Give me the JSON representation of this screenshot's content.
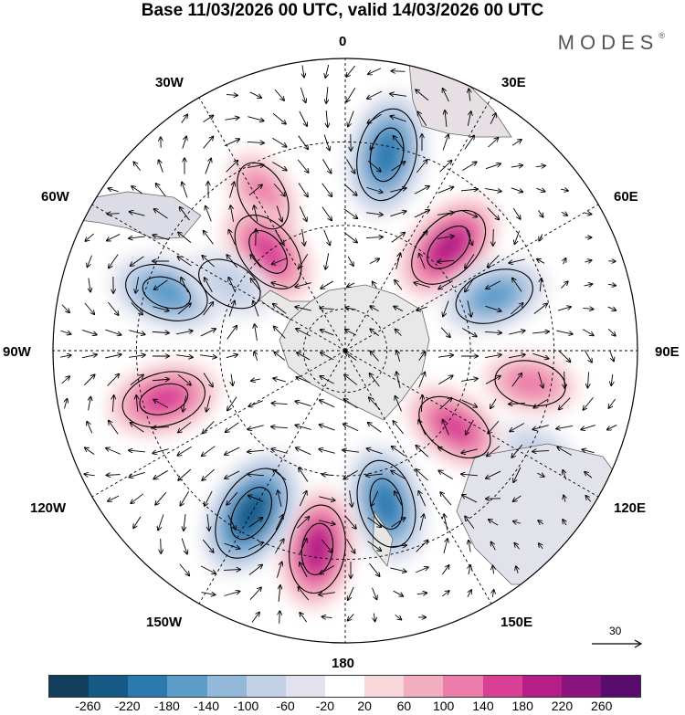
{
  "title": "Base 11/03/2026 00 UTC, valid 14/03/2026 00 UTC",
  "brand": "MODES",
  "brand_mark": "®",
  "longitude_labels": {
    "lon_0": "0",
    "lon_30e": "30E",
    "lon_60e": "60E",
    "lon_90e": "90E",
    "lon_120e": "120E",
    "lon_150e": "150E",
    "lon_180": "180",
    "lon_150w": "150W",
    "lon_120w": "120W",
    "lon_90w": "90W",
    "lon_60w": "60W",
    "lon_30w": "30W"
  },
  "reference_vector": {
    "label": "30"
  },
  "colorbar": {
    "ticks": [
      "-260",
      "-220",
      "-180",
      "-140",
      "-100",
      "-60",
      "-20",
      "20",
      "60",
      "100",
      "140",
      "180",
      "220",
      "260"
    ],
    "colors": [
      "#123d5c",
      "#155a86",
      "#2a7ab0",
      "#5b9cc9",
      "#93b8da",
      "#c3d1e7",
      "#e2e2ee",
      "#ffffff",
      "#f8d7da",
      "#f3aebf",
      "#ec7daa",
      "#da3f96",
      "#b41e86",
      "#8a1380",
      "#5a0c6e"
    ]
  },
  "map_data": {
    "projection": "south polar stereographic",
    "field_units_range": [
      -260,
      260
    ],
    "anomaly_centers": [
      {
        "lon": -28,
        "lat": -48,
        "value": 120
      },
      {
        "lon": -38,
        "lat": -60,
        "value": 180
      },
      {
        "lon": 12,
        "lat": -42,
        "value": -220
      },
      {
        "lon": 45,
        "lat": -55,
        "value": 200
      },
      {
        "lon": 70,
        "lat": -52,
        "value": -160
      },
      {
        "lon": 100,
        "lat": -45,
        "value": 120
      },
      {
        "lon": 125,
        "lat": -58,
        "value": 160
      },
      {
        "lon": 118,
        "lat": -38,
        "value": -80
      },
      {
        "lon": 165,
        "lat": -52,
        "value": -200
      },
      {
        "lon": -172,
        "lat": -42,
        "value": 200
      },
      {
        "lon": -150,
        "lat": -45,
        "value": -240
      },
      {
        "lon": -105,
        "lat": -45,
        "value": 180
      },
      {
        "lon": -72,
        "lat": -45,
        "value": -180
      },
      {
        "lon": -60,
        "lat": -58,
        "value": -100
      }
    ]
  }
}
